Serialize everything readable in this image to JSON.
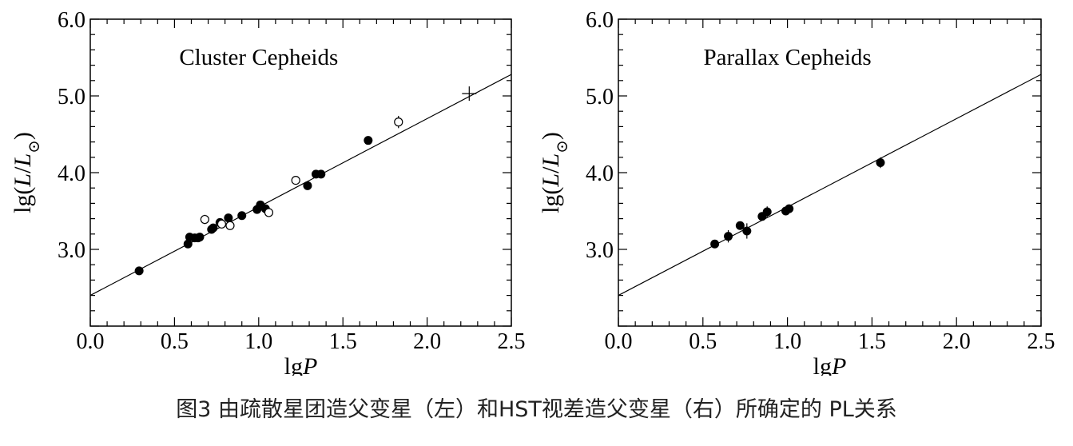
{
  "caption": "图3 由疏散星团造父变星（左）和HST视差造父变星（右）所确定的 PL关系",
  "chart_data": [
    {
      "type": "scatter",
      "title": "Cluster Cepheids",
      "xlabel": "lgP",
      "ylabel": "lg(L/L⊙)",
      "xlim": [
        0.0,
        2.5
      ],
      "ylim": [
        2.0,
        6.0
      ],
      "xticks": [
        "0.0",
        "0.5",
        "1.0",
        "1.5",
        "2.0",
        "2.5"
      ],
      "yticks": [
        "3.0",
        "4.0",
        "5.0",
        "6.0"
      ],
      "grid": false,
      "fit_line": {
        "x": [
          0.0,
          2.5
        ],
        "y": [
          2.4,
          5.28
        ]
      },
      "series": [
        {
          "marker": "filled-circle",
          "x": [
            0.29,
            0.58,
            0.59,
            0.62,
            0.64,
            0.65,
            0.72,
            0.73,
            0.77,
            0.82,
            0.9,
            0.99,
            1.01,
            1.04,
            1.29,
            1.34,
            1.37,
            1.65
          ],
          "y": [
            2.72,
            3.07,
            3.16,
            3.15,
            3.15,
            3.16,
            3.26,
            3.28,
            3.35,
            3.41,
            3.44,
            3.52,
            3.58,
            3.53,
            3.83,
            3.98,
            3.98,
            4.42
          ],
          "err": [
            0,
            0,
            0,
            0,
            0,
            0,
            0,
            0,
            0,
            0,
            0,
            0,
            0,
            0,
            0,
            0,
            0,
            0
          ]
        },
        {
          "marker": "open-circle",
          "x": [
            0.68,
            0.78,
            0.83,
            1.06,
            1.22,
            1.83
          ],
          "y": [
            3.39,
            3.33,
            3.31,
            3.48,
            3.9,
            4.66
          ],
          "err": [
            0.06,
            0.04,
            0.04,
            0.05,
            0.04,
            0.08
          ]
        },
        {
          "marker": "plus",
          "x": [
            2.25
          ],
          "y": [
            5.03
          ],
          "err": [
            0
          ]
        }
      ]
    },
    {
      "type": "scatter",
      "title": "Parallax Cepheids",
      "xlabel": "lgP",
      "ylabel": "lg(L/L⊙)",
      "xlim": [
        0.0,
        2.5
      ],
      "ylim": [
        2.0,
        6.0
      ],
      "xticks": [
        "0.0",
        "0.5",
        "1.0",
        "1.5",
        "2.0",
        "2.5"
      ],
      "yticks": [
        "3.0",
        "4.0",
        "5.0",
        "6.0"
      ],
      "grid": false,
      "fit_line": {
        "x": [
          0.0,
          2.5
        ],
        "y": [
          2.4,
          5.28
        ]
      },
      "series": [
        {
          "marker": "filled-circle",
          "x": [
            0.57,
            0.65,
            0.72,
            0.76,
            0.85,
            0.88,
            0.99,
            1.01,
            1.55
          ],
          "y": [
            3.07,
            3.17,
            3.31,
            3.24,
            3.43,
            3.49,
            3.5,
            3.53,
            4.13
          ],
          "err": [
            0.05,
            0.08,
            0.05,
            0.1,
            0.04,
            0.07,
            0.04,
            0.05,
            0.07
          ]
        }
      ]
    }
  ]
}
